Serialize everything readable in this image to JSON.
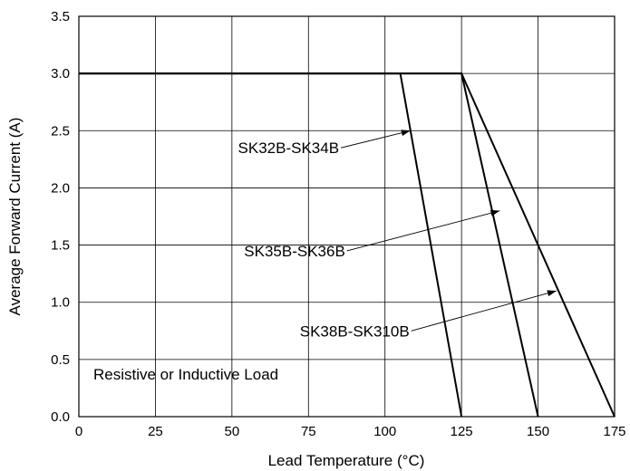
{
  "chart_data": {
    "type": "line",
    "title": "",
    "xlabel": "Lead Temperature (°C)",
    "ylabel": "Average Forward Current (A)",
    "xlim": [
      0,
      175
    ],
    "ylim": [
      0,
      3.5
    ],
    "xticks": [
      0,
      25,
      50,
      75,
      100,
      125,
      150,
      175
    ],
    "yticks": [
      0.0,
      0.5,
      1.0,
      1.5,
      2.0,
      2.5,
      3.0,
      3.5
    ],
    "xtick_labels": [
      "0",
      "25",
      "50",
      "75",
      "100",
      "125",
      "150",
      "175"
    ],
    "ytick_labels": [
      "0.0",
      "0.5",
      "1.0",
      "1.5",
      "2.0",
      "2.5",
      "3.0",
      "3.5"
    ],
    "grid": true,
    "series": [
      {
        "name": "SK32B-SK34B",
        "x": [
          0,
          105,
          125
        ],
        "y": [
          3.0,
          3.0,
          0.0
        ]
      },
      {
        "name": "SK35B-SK36B",
        "x": [
          0,
          125,
          150
        ],
        "y": [
          3.0,
          3.0,
          0.0
        ]
      },
      {
        "name": "SK38B-SK310B",
        "x": [
          0,
          125,
          175
        ],
        "y": [
          3.0,
          3.0,
          0.0
        ]
      }
    ],
    "annotations": [
      {
        "series": 0,
        "text": "SK32B-SK34B",
        "text_at": [
          85,
          2.35
        ],
        "anchor": "end",
        "arrow_to": [
          108.3,
          2.5
        ]
      },
      {
        "series": 1,
        "text": "SK35B-SK36B",
        "text_at": [
          87,
          1.45
        ],
        "anchor": "end",
        "arrow_to": [
          137.5,
          1.8
        ]
      },
      {
        "series": 2,
        "text": "SK38B-SK310B",
        "text_at": [
          108,
          0.75
        ],
        "anchor": "end",
        "arrow_to": [
          156,
          1.1
        ]
      }
    ],
    "note": "Resistive or Inductive Load"
  }
}
